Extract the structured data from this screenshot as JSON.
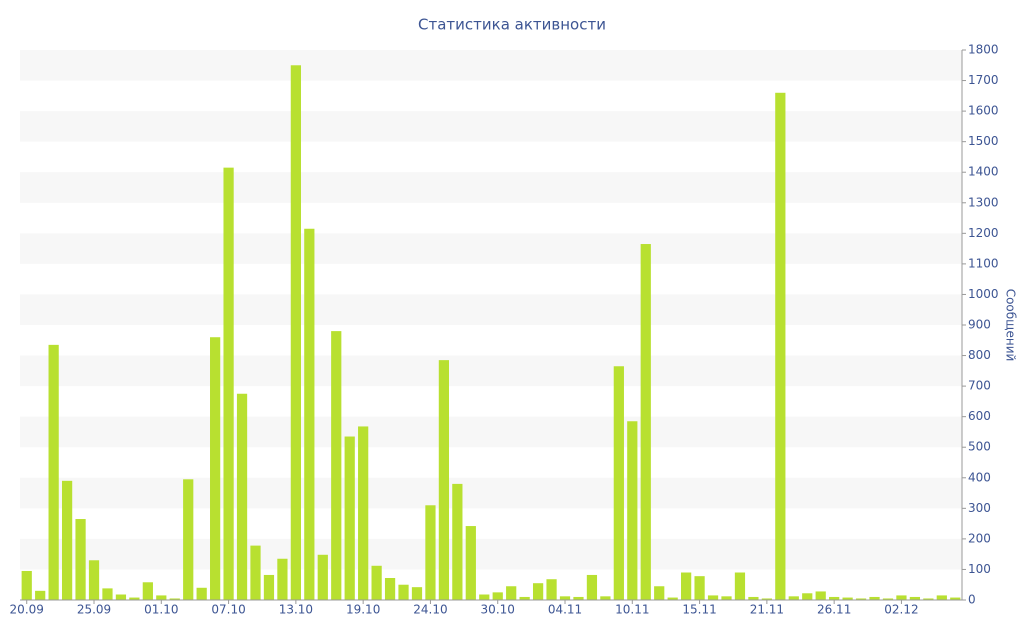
{
  "chart_data": {
    "type": "bar",
    "title": "Статистика активности",
    "y_label": "Сообщений",
    "categories": [
      "20.09",
      null,
      null,
      null,
      null,
      "25.09",
      null,
      null,
      null,
      null,
      "01.10",
      null,
      null,
      null,
      null,
      "07.10",
      null,
      null,
      null,
      null,
      "13.10",
      null,
      null,
      null,
      null,
      "19.10",
      null,
      null,
      null,
      null,
      "24.10",
      null,
      null,
      null,
      null,
      "30.10",
      null,
      null,
      null,
      null,
      "04.11",
      null,
      null,
      null,
      null,
      "10.11",
      null,
      null,
      null,
      null,
      "15.11",
      null,
      null,
      null,
      null,
      "21.11",
      null,
      null,
      null,
      null,
      "26.11",
      null,
      null,
      null,
      null,
      "02.12",
      null,
      null,
      null,
      null
    ],
    "values": [
      95,
      30,
      835,
      390,
      265,
      130,
      38,
      18,
      8,
      58,
      15,
      5,
      395,
      40,
      860,
      1415,
      675,
      178,
      82,
      135,
      1750,
      1215,
      148,
      880,
      535,
      568,
      112,
      72,
      50,
      42,
      310,
      785,
      380,
      242,
      18,
      25,
      45,
      10,
      55,
      68,
      12,
      10,
      82,
      12,
      765,
      585,
      1165,
      45,
      8,
      90,
      78,
      15,
      12,
      90,
      10,
      5,
      1660,
      12,
      22,
      28,
      10,
      8,
      5,
      10,
      5,
      15,
      10,
      5,
      15,
      8
    ],
    "color": "#b8e030",
    "ylim": [
      0,
      1800
    ],
    "yticks": [
      0,
      100,
      200,
      300,
      400,
      500,
      600,
      700,
      800,
      900,
      1000,
      1100,
      1200,
      1300,
      1400,
      1500,
      1600,
      1700,
      1800
    ],
    "grid": true,
    "y_axis_side": "right"
  }
}
